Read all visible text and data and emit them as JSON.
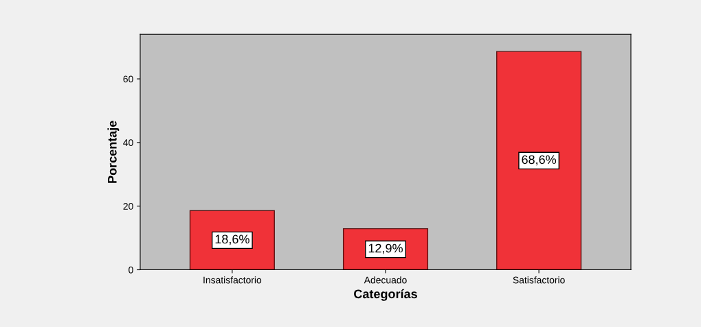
{
  "chart_data": {
    "type": "bar",
    "xlabel": "Categorías",
    "ylabel": "Porcentaje",
    "categories": [
      "Insatisfactorio",
      "Adecuado",
      "Satisfactorio"
    ],
    "values": [
      18.6,
      12.9,
      68.6
    ],
    "value_labels": [
      "18,6%",
      "12,9%",
      "68,6%"
    ],
    "color": "#f03238",
    "ylim": [
      0,
      74
    ],
    "yticks": [
      0,
      20,
      40,
      60
    ],
    "grid": false
  }
}
